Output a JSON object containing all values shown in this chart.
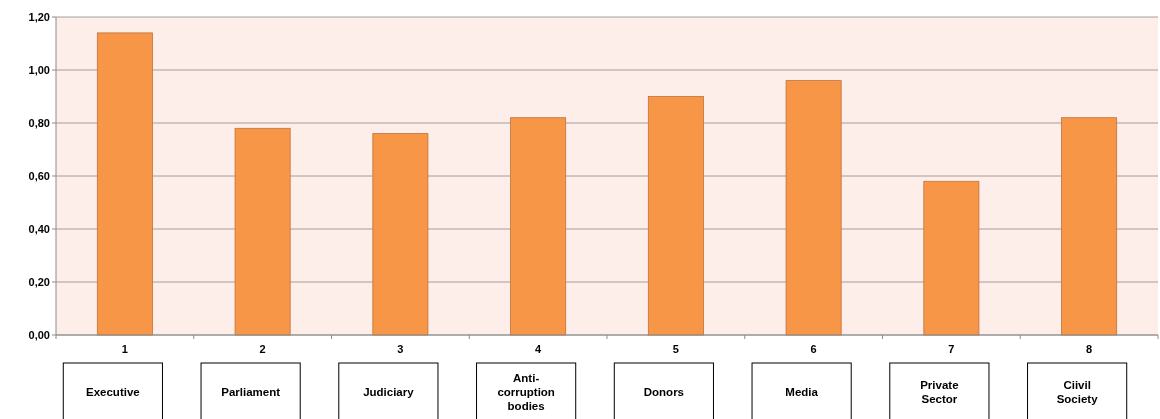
{
  "chart_data": {
    "type": "bar",
    "categories": [
      "1",
      "2",
      "3",
      "4",
      "5",
      "6",
      "7",
      "8"
    ],
    "values": [
      1.14,
      0.78,
      0.76,
      0.82,
      0.9,
      0.96,
      0.58,
      0.82
    ],
    "color": "#f79646",
    "ylim": [
      0,
      1.2
    ],
    "yticks": [
      {
        "value": 0,
        "label": "0,00"
      },
      {
        "value": 0.2,
        "label": "0,20"
      },
      {
        "value": 0.4,
        "label": "0,40"
      },
      {
        "value": 0.6,
        "label": "0,60"
      },
      {
        "value": 0.8,
        "label": "0,80"
      },
      {
        "value": 1.0,
        "label": "1,00"
      },
      {
        "value": 1.2,
        "label": "1,20"
      }
    ],
    "grid": "y",
    "annotations": [
      "Executive",
      "Parliament",
      "Judiciary",
      "Anti-corruption bodies",
      "Donors",
      "Media",
      "Private Sector",
      "Ciivil Society"
    ]
  }
}
